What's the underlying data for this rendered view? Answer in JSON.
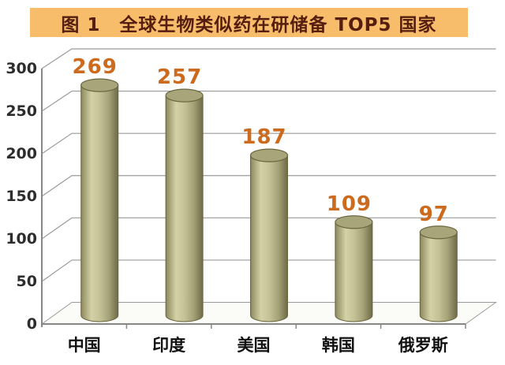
{
  "figure": {
    "title": "图 1　全球生物类似药在研储备 TOP5 国家"
  },
  "colors": {
    "background": "#ffffff",
    "banner_bg": "#f7bd6b",
    "banner_text": "#551e0f",
    "value_label": "#cc6a1e",
    "bar_edge_left": "#87835e",
    "bar_light": "#d5d1a7",
    "bar_mid": "#c6c298",
    "bar_dark": "#6e6a46",
    "bar_top": "#a9a57b",
    "bar_stroke": "#6b673f",
    "gridline": "#9b9b9b",
    "axis": "#878787",
    "floor_fill": "#fbfbf8",
    "tick_text": "#2d2d2d",
    "category_text": "#111111"
  },
  "chart_data": {
    "type": "bar",
    "style": "3d-cylinder",
    "title": "图 1　全球生物类似药在研储备 TOP5 国家",
    "categories": [
      "中国",
      "印度",
      "美国",
      "韩国",
      "俄罗斯"
    ],
    "values": [
      269,
      257,
      187,
      109,
      97
    ],
    "xlabel": "",
    "ylabel": "",
    "ylim": [
      0,
      300
    ],
    "yticks": [
      0,
      50,
      100,
      150,
      200,
      250,
      300
    ],
    "grid": true,
    "legend": "none",
    "value_labels_shown": true
  }
}
